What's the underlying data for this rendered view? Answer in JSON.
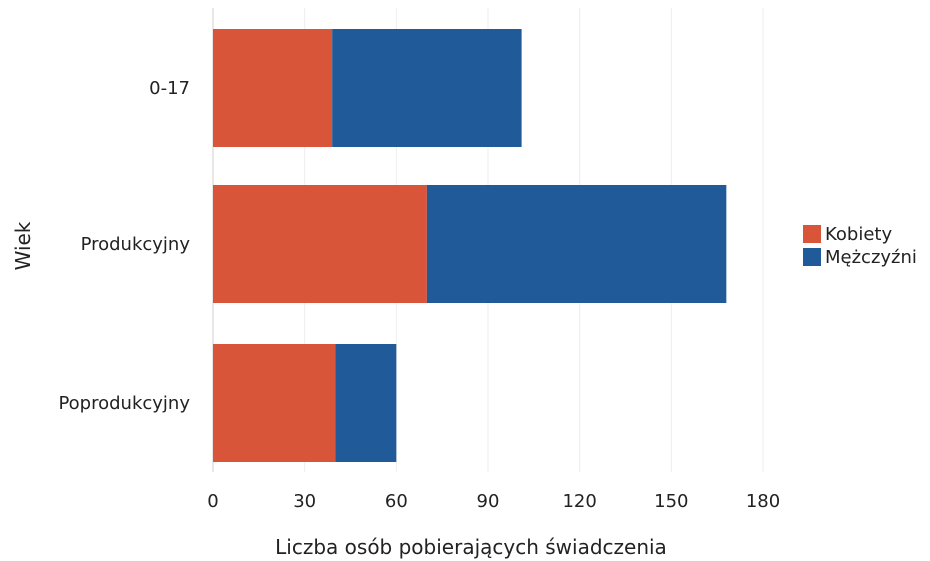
{
  "chart_data": {
    "type": "bar",
    "orientation": "horizontal",
    "stacked": true,
    "title": "",
    "xlabel": "Liczba osób pobierających świadczenia",
    "ylabel": "Wiek",
    "categories": [
      "0-17",
      "Produkcyjny",
      "Poprodukcyjny"
    ],
    "series": [
      {
        "name": "Kobiety",
        "values": [
          39,
          70,
          40
        ],
        "color": "#d9553a"
      },
      {
        "name": "Mężczyźni",
        "values": [
          62,
          98,
          20
        ],
        "color": "#215a98"
      }
    ],
    "xlim": [
      0,
      180
    ],
    "xticks": [
      0,
      30,
      60,
      90,
      120,
      150,
      180
    ],
    "grid": true,
    "legend_position": "right"
  }
}
